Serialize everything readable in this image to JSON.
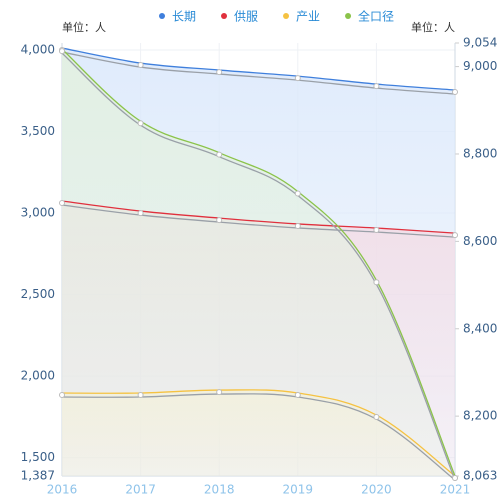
{
  "chart_data": {
    "type": "line",
    "y_label": "单位：人",
    "y2_label": "单位：人",
    "categories": [
      "2016",
      "2017",
      "2018",
      "2019",
      "2020",
      "2021"
    ],
    "series": [
      {
        "name": "长期",
        "color": "#3f7fdc",
        "fill": "#dce9fb",
        "values": [
          4012,
          3920,
          3877,
          3840,
          3791,
          3755
        ]
      },
      {
        "name": "供服",
        "color": "#e0303d",
        "fill": "#f3dde6",
        "values": [
          3074,
          3012,
          2969,
          2933,
          2908,
          2877
        ]
      },
      {
        "name": "产业",
        "color": "#f5c242",
        "fill": "#fbf1dc",
        "values": [
          1896,
          1896,
          1914,
          1896,
          1761,
          1387
        ]
      },
      {
        "name": "全口径",
        "color": "#8bc34a",
        "fill": "#e3f1e0",
        "axis": "y2",
        "values": [
          9040,
          8875,
          8803,
          8714,
          8511,
          8063
        ]
      }
    ],
    "ylim": [
      1387,
      4043
    ],
    "yticks": [
      {
        "value": 1387,
        "label": "1,387"
      },
      {
        "value": 1500,
        "label": "1,500"
      },
      {
        "value": 2000,
        "label": "2,000"
      },
      {
        "value": 2500,
        "label": "2,500"
      },
      {
        "value": 3000,
        "label": "3,000"
      },
      {
        "value": 3500,
        "label": "3,500"
      },
      {
        "value": 4000,
        "label": "4,000"
      }
    ],
    "y2lim": [
      8063,
      9054
    ],
    "y2ticks": [
      {
        "value": 8063,
        "label": "8,063"
      },
      {
        "value": 8200,
        "label": "8,200"
      },
      {
        "value": 8400,
        "label": "8,400"
      },
      {
        "value": 8600,
        "label": "8,600"
      },
      {
        "value": 8800,
        "label": "8,800"
      },
      {
        "value": 9000,
        "label": "9,000"
      },
      {
        "value": 9054,
        "label": "9,054"
      }
    ],
    "grid": true
  }
}
